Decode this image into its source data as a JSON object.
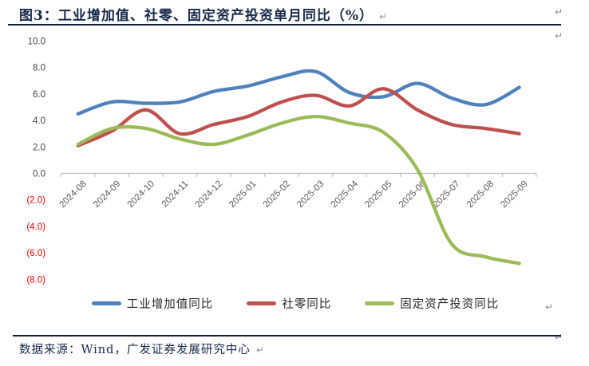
{
  "figure": {
    "label": "图3：",
    "title": "工业增加值、社零、固定资产投资单月同比（%）",
    "source": "数据来源：Wind，广发证券发展研究中心",
    "paragraph_mark": "↵"
  },
  "colors": {
    "title": "#16294a",
    "rule": "#0b1f3a",
    "axis_line": "#bfbfbf",
    "x_tick_label": "#595959",
    "y_tick_label": "#404040",
    "y_tick_negative": "#ff0000",
    "legend_text": "#262626",
    "paragraph_mark": "#8a8f98"
  },
  "chart_data": {
    "type": "line",
    "smoothed": true,
    "grid": false,
    "legend_position": "bottom",
    "categories": [
      "2024-08",
      "2024-09",
      "2024-10",
      "2024-11",
      "2024-12",
      "2025-01",
      "2025-02",
      "2025-03",
      "2025-04",
      "2025-05",
      "2025-06",
      "2025-07",
      "2025-08",
      "2025-09"
    ],
    "series": [
      {
        "name": "工业增加值同比",
        "color": "#4f81bd",
        "values": [
          4.5,
          5.4,
          5.3,
          5.4,
          6.2,
          6.6,
          7.3,
          7.7,
          6.1,
          5.8,
          6.8,
          5.7,
          5.2,
          6.5
        ]
      },
      {
        "name": "社零同比",
        "color": "#c0504d",
        "values": [
          2.1,
          3.2,
          4.8,
          3.0,
          3.7,
          4.3,
          5.4,
          5.9,
          5.1,
          6.4,
          4.8,
          3.7,
          3.4,
          3.0
        ]
      },
      {
        "name": "固定资产投资同比",
        "color": "#9bbb59",
        "values": [
          2.2,
          3.4,
          3.4,
          2.6,
          2.2,
          2.9,
          3.8,
          4.3,
          3.8,
          3.1,
          0.3,
          -5.3,
          -6.3,
          -6.8
        ]
      }
    ],
    "ylim": [
      -8,
      10
    ],
    "ytick_step": 2,
    "yticks": [
      {
        "value": 10,
        "label": "10.0"
      },
      {
        "value": 8,
        "label": "8.0"
      },
      {
        "value": 6,
        "label": "6.0"
      },
      {
        "value": 4,
        "label": "4.0"
      },
      {
        "value": 2,
        "label": "2.0"
      },
      {
        "value": 0,
        "label": "0.0"
      },
      {
        "value": -2,
        "label": "(2.0)"
      },
      {
        "value": -4,
        "label": "(4.0)"
      },
      {
        "value": -6,
        "label": "(6.0)"
      },
      {
        "value": -8,
        "label": "(8.0)"
      }
    ]
  }
}
